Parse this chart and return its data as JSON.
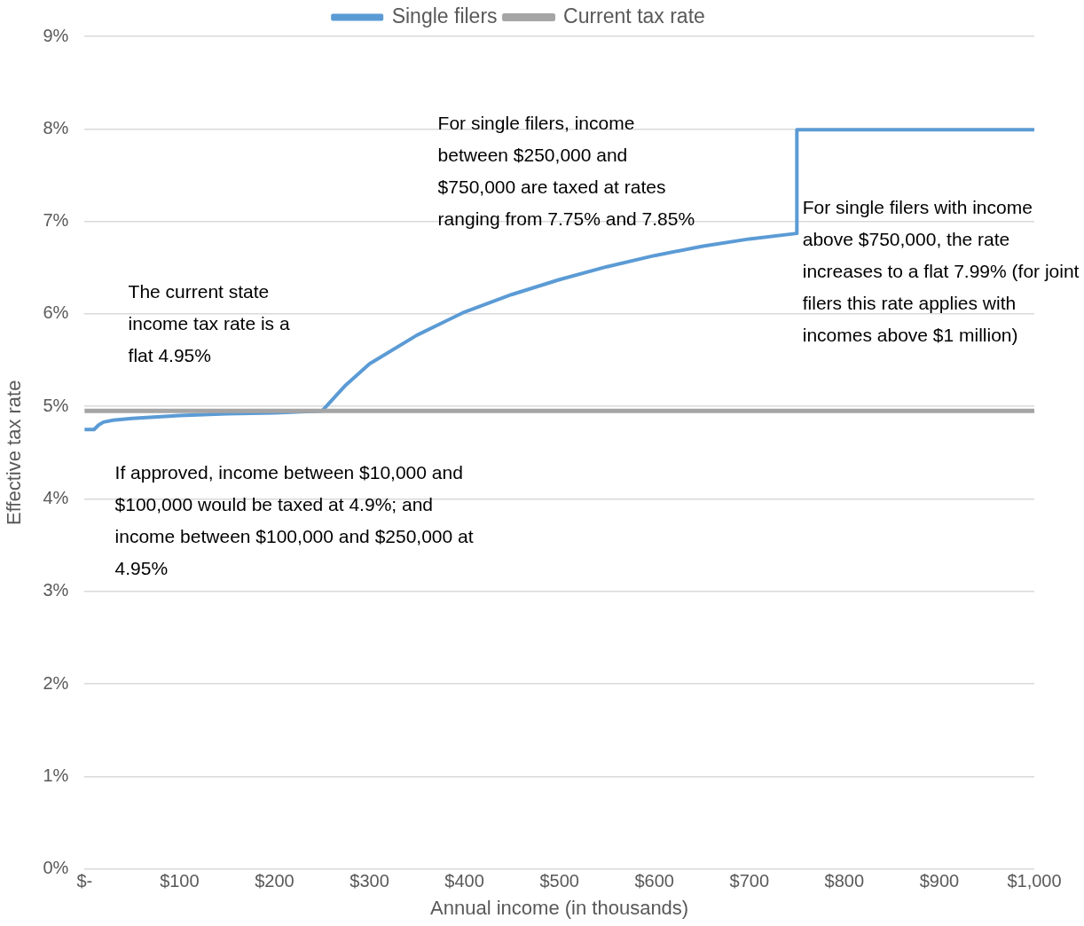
{
  "chart_data": {
    "type": "line",
    "xlabel": "Annual income (in thousands)",
    "ylabel": "Effective tax rate",
    "xlim": [
      0,
      1000
    ],
    "xticks": [
      {
        "value": 0,
        "label": "$-"
      },
      {
        "value": 100,
        "label": "$100"
      },
      {
        "value": 200,
        "label": "$200"
      },
      {
        "value": 300,
        "label": "$300"
      },
      {
        "value": 400,
        "label": "$400"
      },
      {
        "value": 500,
        "label": "$500"
      },
      {
        "value": 600,
        "label": "$600"
      },
      {
        "value": 700,
        "label": "$700"
      },
      {
        "value": 800,
        "label": "$800"
      },
      {
        "value": 900,
        "label": "$900"
      },
      {
        "value": 1000,
        "label": "$1,000"
      }
    ],
    "ylim": [
      0,
      9
    ],
    "yticks": [
      {
        "value": 0,
        "label": "0%"
      },
      {
        "value": 1,
        "label": "1%"
      },
      {
        "value": 2,
        "label": "2%"
      },
      {
        "value": 3,
        "label": "3%"
      },
      {
        "value": 4,
        "label": "4%"
      },
      {
        "value": 5,
        "label": "5%"
      },
      {
        "value": 6,
        "label": "6%"
      },
      {
        "value": 7,
        "label": "7%"
      },
      {
        "value": 8,
        "label": "8%"
      },
      {
        "value": 9,
        "label": "9%"
      }
    ],
    "grid": "y",
    "legend": "top",
    "series": [
      {
        "name": "Single filers",
        "color": "#5b9bd5",
        "x": [
          0,
          10,
          15,
          20,
          30,
          50,
          100,
          150,
          200,
          250,
          275,
          300,
          350,
          400,
          450,
          500,
          550,
          600,
          650,
          700,
          750,
          750,
          1000
        ],
        "values": [
          4.75,
          4.75,
          4.8,
          4.83,
          4.85,
          4.87,
          4.9,
          4.92,
          4.93,
          4.95,
          5.23,
          5.46,
          5.77,
          6.02,
          6.21,
          6.37,
          6.51,
          6.63,
          6.73,
          6.81,
          6.87,
          7.99,
          7.99
        ]
      },
      {
        "name": "Current tax rate",
        "color": "#a5a5a5",
        "x": [
          0,
          1000
        ],
        "values": [
          4.95,
          4.95
        ]
      }
    ],
    "annotations": [
      "The current state income tax rate is a flat 4.95%",
      "For single filers, income between $250,000 and $750,000 are taxed at rates ranging from 7.75% and 7.85%",
      "For single filers with income above $750,000, the rate increases to a flat 7.99% (for joint filers this rate applies with incomes above $1 million)",
      "If approved, income between $10,000 and $100,000 would be taxed at 4.9%; and income between $100,000 and $250,000 at 4.95%"
    ]
  }
}
